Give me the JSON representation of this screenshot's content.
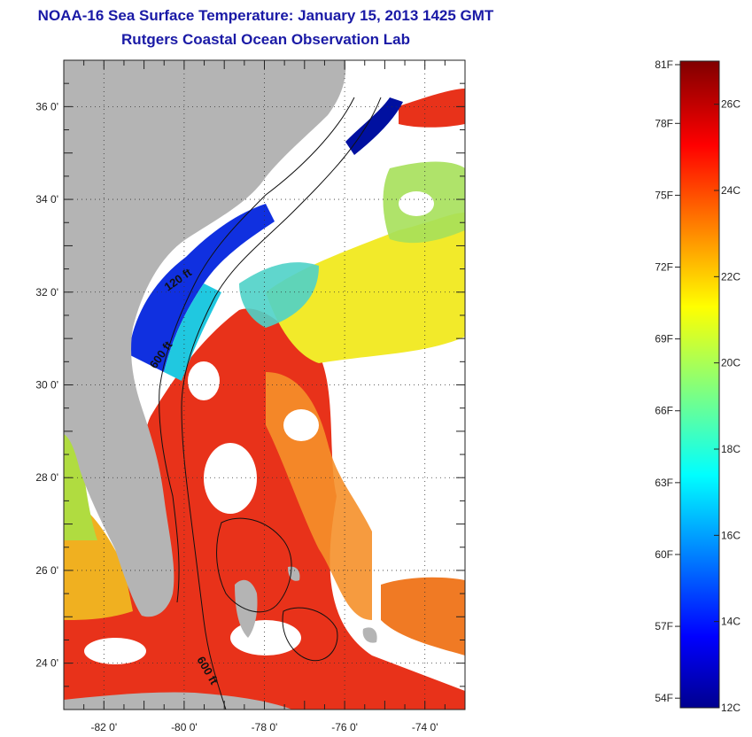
{
  "header": {
    "title": "NOAA-16 Sea Surface Temperature:  January 15, 2013 1425 GMT",
    "subtitle": "Rutgers Coastal Ocean Observation Lab"
  },
  "map": {
    "lon_range": [
      -83,
      -73
    ],
    "lat_range": [
      23,
      37
    ],
    "lon_ticks": [
      {
        "value": -82,
        "label": "-82 0'"
      },
      {
        "value": -80,
        "label": "-80 0'"
      },
      {
        "value": -78,
        "label": "-78 0'"
      },
      {
        "value": -76,
        "label": "-76 0'"
      },
      {
        "value": -74,
        "label": "-74 0'"
      }
    ],
    "lat_ticks": [
      {
        "value": 24,
        "label": "24 0'"
      },
      {
        "value": 26,
        "label": "26 0'"
      },
      {
        "value": 28,
        "label": "28 0'"
      },
      {
        "value": 30,
        "label": "30 0'"
      },
      {
        "value": 32,
        "label": "32 0'"
      },
      {
        "value": 34,
        "label": "34 0'"
      },
      {
        "value": 36,
        "label": "36 0'"
      }
    ],
    "contour_labels": [
      {
        "text": "120 ft",
        "lon": -80.1,
        "lat": 32.2
      },
      {
        "text": "600 ft",
        "lon": -80.5,
        "lat": 30.6
      },
      {
        "text": "600 ft",
        "lon": -79.5,
        "lat": 23.8
      }
    ],
    "colors": {
      "land": "#b4b4b4",
      "cloud": "#ffffff",
      "grid": "#333333"
    }
  },
  "colorbar": {
    "range_c": [
      12,
      27
    ],
    "fahrenheit_labels": [
      "81F",
      "78F",
      "75F",
      "72F",
      "69F",
      "66F",
      "63F",
      "60F",
      "57F",
      "54F"
    ],
    "celsius_labels": [
      "26C",
      "24C",
      "22C",
      "20C",
      "18C",
      "16C",
      "14C",
      "12C"
    ],
    "fahrenheit_values": [
      81,
      78,
      75,
      72,
      69,
      66,
      63,
      60,
      57,
      54
    ],
    "celsius_values": [
      26,
      24,
      22,
      20,
      18,
      16,
      14,
      12
    ],
    "colormap": "jet"
  }
}
